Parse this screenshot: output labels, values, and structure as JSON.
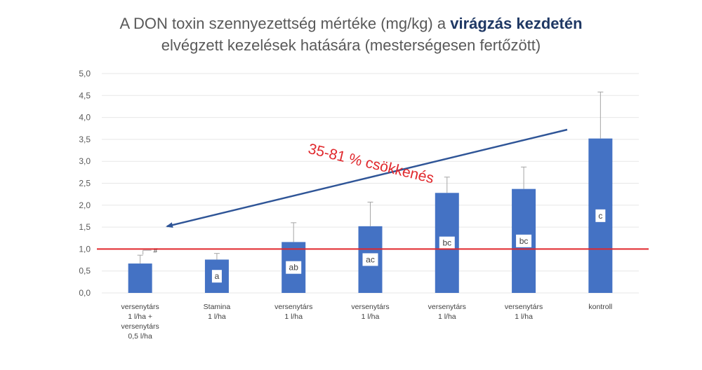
{
  "chart_data": {
    "type": "bar",
    "title_line1_plain": "A DON toxin szennyezettség mértéke (mg/kg) a ",
    "title_line1_bold": "virágzás kezdetén",
    "title_line2": "elvégzett kezelések hatására (mesterségesen fertőzött)",
    "categories": [
      [
        "versenytárs",
        "1 l/ha +",
        "versenytárs",
        "0,5 l/ha"
      ],
      [
        "Stamina",
        "1 l/ha"
      ],
      [
        "versenytárs",
        "1 l/ha"
      ],
      [
        "versenytárs",
        "1 l/ha"
      ],
      [
        "versenytárs",
        "1 l/ha"
      ],
      [
        "versenytárs",
        "1 l/ha"
      ],
      [
        "kontroll"
      ]
    ],
    "values": [
      0.67,
      0.76,
      1.16,
      1.52,
      2.28,
      2.37,
      3.52
    ],
    "error_upper": [
      0.86,
      0.9,
      1.6,
      2.07,
      2.64,
      2.87,
      4.58
    ],
    "significance_letters": [
      "",
      "a",
      "ab",
      "ac",
      "bc",
      "bc",
      "c"
    ],
    "note_marker": "#",
    "yticks": [
      "0,0",
      "0,5",
      "1,0",
      "1,5",
      "2,0",
      "2,5",
      "3,0",
      "3,5",
      "4,0",
      "4,5",
      "5,0"
    ],
    "ylim": [
      0,
      5
    ],
    "threshold": 1.0,
    "annotation": "35-81 % csökkenés",
    "grid": true,
    "colors": {
      "bar": "#4472c4",
      "threshold": "#e0272c",
      "annotation": "#e0272c",
      "arrow": "#2f5597",
      "grid": "#e7e7e7",
      "text": "#595959"
    }
  }
}
